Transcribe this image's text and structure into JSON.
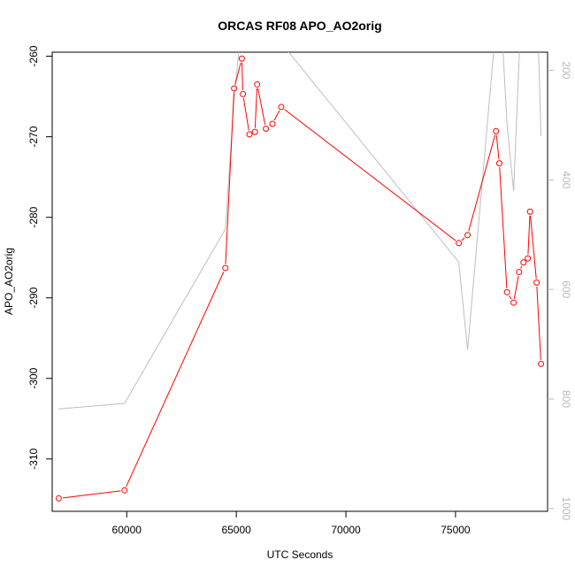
{
  "chart_data": {
    "type": "line",
    "title": "ORCAS RF08 APO_AO2orig",
    "xlabel": "UTC Seconds",
    "ylabel": "APO_AO2orig",
    "xlim": [
      56600,
      79200
    ],
    "ylim": [
      -316.5,
      -259.5
    ],
    "x_ticks": [
      60000,
      65000,
      70000,
      75000
    ],
    "y_ticks": [
      -260,
      -270,
      -280,
      -290,
      -300,
      -310
    ],
    "y2_lim": [
      1005,
      167
    ],
    "y2_ticks": [
      200,
      400,
      600,
      800,
      1000
    ],
    "grid": false,
    "series": [
      {
        "color": "#ff0000",
        "axis": "left",
        "markers": "open-circle",
        "x": [
          56900,
          59900,
          64500,
          64900,
          65250,
          65300,
          65600,
          65850,
          65950,
          66350,
          66650,
          67050,
          75150,
          75550,
          76850,
          77000,
          77350,
          77650,
          77900,
          78100,
          78300,
          78400,
          78700,
          78900
        ],
        "y": [
          -314.9,
          -313.9,
          -286.3,
          -264.0,
          -260.3,
          -264.7,
          -269.7,
          -269.4,
          -263.5,
          -269.0,
          -268.4,
          -266.3,
          -283.2,
          -282.2,
          -269.3,
          -273.3,
          -289.3,
          -290.6,
          -286.8,
          -285.6,
          -285.1,
          -279.3,
          -288.1,
          -298.2
        ]
      },
      {
        "color": "#bebebe",
        "axis": "right",
        "x": [
          56900,
          59900,
          64500,
          64900,
          65250,
          65300,
          65600,
          65850,
          65950,
          66350,
          66650,
          67050,
          75150,
          75550,
          76850,
          77000,
          77350,
          77650,
          77900,
          78100,
          78300,
          78400,
          78700,
          78900
        ],
        "y": [
          818,
          808,
          490,
          250,
          113,
          130,
          150,
          70,
          90,
          150,
          60,
          150,
          550,
          710,
          115,
          40,
          300,
          420,
          180,
          100,
          60,
          80,
          40,
          320
        ]
      }
    ]
  }
}
